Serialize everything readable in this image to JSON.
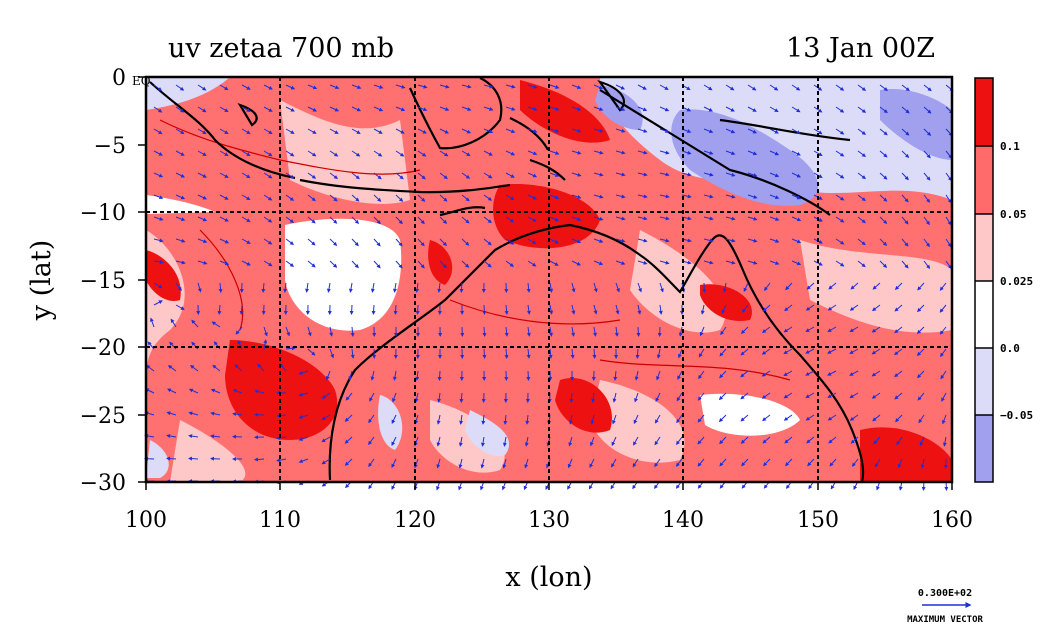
{
  "title": "uv zetaa 700 mb",
  "time_label": "13 Jan 00Z",
  "chart_data": {
    "type": "map",
    "variable": "zetaa",
    "level": "700 mb",
    "xlabel": "x (lon)",
    "ylabel": "y (lat)",
    "xlim": [
      100,
      160
    ],
    "ylim": [
      -30,
      0
    ],
    "x_ticks": [
      "100",
      "110",
      "120",
      "130",
      "140",
      "150",
      "160"
    ],
    "y_ticks": [
      "0",
      "−5",
      "−10",
      "−15",
      "−20",
      "−25",
      "−30"
    ],
    "equator_label": "EQ",
    "grid": true,
    "colorbar": {
      "labels": [
        "0.1",
        "0.05",
        "0.025",
        "0.0",
        "−0.05"
      ],
      "colors": [
        "#ee1111",
        "#ff6b6b",
        "#ffc8c8",
        "#ffffff",
        "#dcdcf8",
        "#a0a0ee"
      ]
    },
    "vector_color": "#1f2fd8",
    "coast_color": "#000000",
    "max_vector_value": "0.300E+02",
    "max_vector_label": "MAXIMUM VECTOR"
  }
}
